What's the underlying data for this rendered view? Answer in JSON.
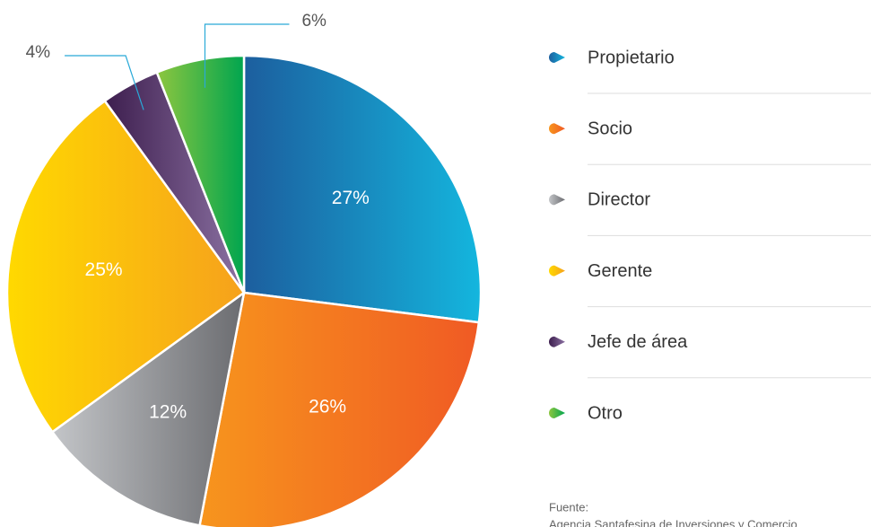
{
  "chart_data": {
    "type": "pie",
    "categories": [
      "Propietario",
      "Socio",
      "Director",
      "Gerente",
      "Jefe de área",
      "Otro"
    ],
    "values": [
      27,
      26,
      12,
      25,
      4,
      6
    ],
    "value_labels": [
      "27%",
      "26%",
      "12%",
      "25%",
      "4%",
      "6%"
    ],
    "colors": [
      [
        "#1c5e9e",
        "#14b6de"
      ],
      [
        "#f7951d",
        "#f05a24"
      ],
      [
        "#c3c5c8",
        "#6b6c70"
      ],
      [
        "#ffd900",
        "#f6a11c"
      ],
      [
        "#3d1e4e",
        "#8c72a3"
      ],
      [
        "#8dc63f",
        "#00a54f"
      ]
    ],
    "source_label": "Fuente:",
    "source": "Agencia Santafesina de Inversiones y Comercio"
  }
}
